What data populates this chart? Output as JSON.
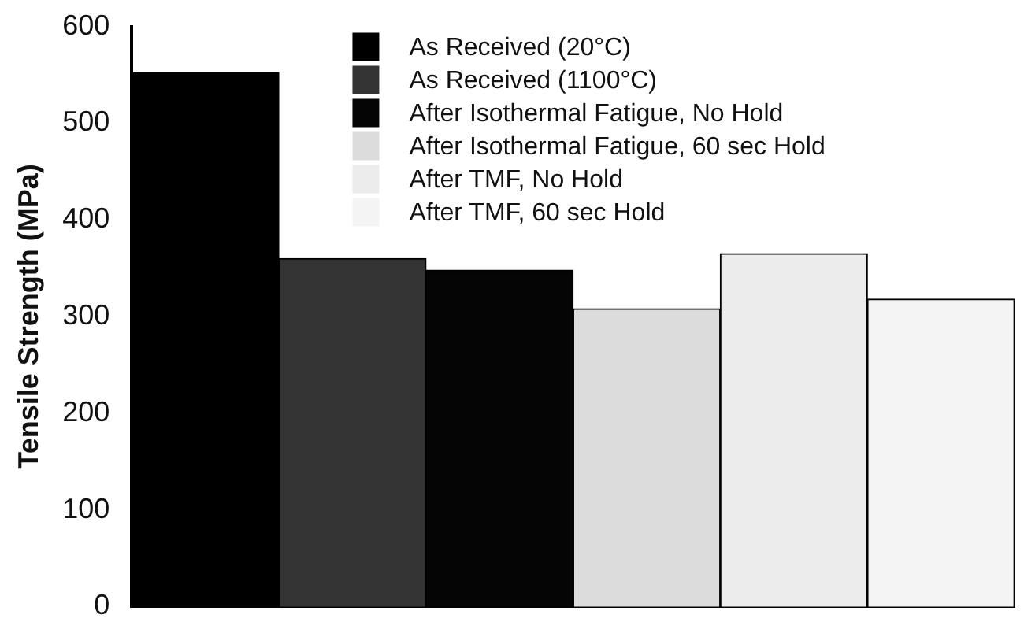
{
  "chart_data": {
    "type": "bar",
    "ylabel": "Tensile Strength (MPa)",
    "categories": [
      null,
      null,
      null,
      null,
      null,
      null
    ],
    "series": [
      {
        "name": "As Received (20°C)",
        "color": "#000000",
        "values": [
          552,
          null,
          null,
          null,
          null,
          null
        ]
      },
      {
        "name": "As Received (1100°C)",
        "color": "#333333",
        "values": [
          null,
          360,
          null,
          null,
          null,
          null
        ]
      },
      {
        "name": "After Isothermal Fatigue, No Hold",
        "color": "#050505",
        "values": [
          null,
          null,
          348,
          null,
          null,
          null
        ]
      },
      {
        "name": "After Isothermal Fatigue, 60 sec Hold",
        "color": "#dcdcdc",
        "values": [
          null,
          null,
          null,
          308,
          null,
          null
        ]
      },
      {
        "name": "After TMF, No Hold",
        "color": "#ececec",
        "values": [
          null,
          null,
          null,
          null,
          365,
          null
        ]
      },
      {
        "name": "After TMF, 60 sec Hold",
        "color": "#f4f4f4",
        "values": [
          null,
          null,
          null,
          null,
          null,
          318
        ]
      }
    ],
    "ylim": [
      0,
      600
    ],
    "yticks": [
      0,
      100,
      200,
      300,
      400,
      500,
      600
    ],
    "grid": false,
    "legend": "top",
    "tick_labels": "y"
  }
}
